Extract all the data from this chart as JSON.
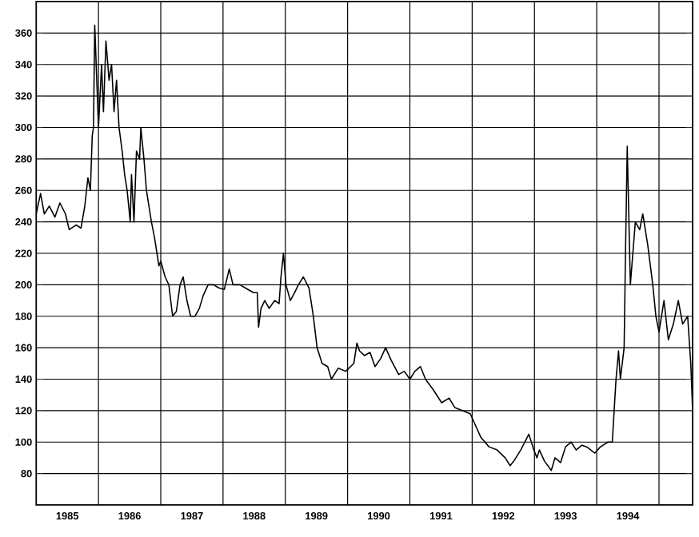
{
  "chart_data": {
    "type": "line",
    "x": [
      1985.0,
      1985.07,
      1985.13,
      1985.21,
      1985.3,
      1985.38,
      1985.47,
      1985.53,
      1985.64,
      1985.72,
      1985.78,
      1985.83,
      1985.87,
      1985.9,
      1985.92,
      1985.94,
      1986.0,
      1986.05,
      1986.08,
      1986.12,
      1986.17,
      1986.21,
      1986.25,
      1986.29,
      1986.33,
      1986.38,
      1986.42,
      1986.46,
      1986.51,
      1986.53,
      1986.57,
      1986.61,
      1986.66,
      1986.68,
      1986.73,
      1986.77,
      1986.81,
      1986.85,
      1986.9,
      1986.97,
      1987.0,
      1987.07,
      1987.13,
      1987.19,
      1987.25,
      1987.31,
      1987.36,
      1987.42,
      1987.48,
      1987.55,
      1987.62,
      1987.68,
      1987.76,
      1987.85,
      1987.93,
      1988.02,
      1988.1,
      1988.16,
      1988.27,
      1988.4,
      1988.49,
      1988.55,
      1988.57,
      1988.61,
      1988.67,
      1988.74,
      1988.83,
      1988.9,
      1988.93,
      1988.97,
      1989.01,
      1989.08,
      1989.15,
      1989.21,
      1989.29,
      1989.38,
      1989.45,
      1989.51,
      1989.59,
      1989.68,
      1989.74,
      1989.85,
      1989.97,
      1990.1,
      1990.15,
      1990.19,
      1990.27,
      1990.36,
      1990.44,
      1990.53,
      1990.61,
      1990.7,
      1990.82,
      1990.91,
      1991.0,
      1991.08,
      1991.17,
      1991.25,
      1991.38,
      1991.51,
      1991.63,
      1991.72,
      1991.84,
      1991.97,
      1992.06,
      1992.14,
      1992.27,
      1992.4,
      1992.53,
      1992.61,
      1992.67,
      1992.78,
      1992.91,
      1992.95,
      1992.99,
      1993.04,
      1993.08,
      1993.16,
      1993.27,
      1993.33,
      1993.42,
      1993.5,
      1993.59,
      1993.67,
      1993.76,
      1993.84,
      1993.97,
      1994.06,
      1994.18,
      1994.25,
      1994.31,
      1994.35,
      1994.38,
      1994.44,
      1994.46,
      1994.49,
      1994.54,
      1994.62,
      1994.69,
      1994.74,
      1994.82,
      1994.9,
      1994.95,
      1995.0,
      1995.08,
      1995.15,
      1995.23,
      1995.31,
      1995.38,
      1995.46,
      1995.51,
      1995.54
    ],
    "values": [
      245,
      258,
      245,
      250,
      243,
      252,
      245,
      235,
      238,
      236,
      250,
      268,
      260,
      295,
      300,
      365,
      300,
      340,
      310,
      355,
      330,
      340,
      310,
      330,
      300,
      285,
      270,
      260,
      240,
      270,
      240,
      285,
      280,
      300,
      280,
      260,
      250,
      240,
      230,
      212,
      215,
      205,
      200,
      180,
      183,
      200,
      205,
      190,
      180,
      180,
      185,
      193,
      200,
      200,
      198,
      197,
      210,
      200,
      200,
      197,
      195,
      195,
      173,
      185,
      190,
      185,
      190,
      188,
      205,
      220,
      200,
      190,
      195,
      200,
      205,
      198,
      180,
      160,
      150,
      148,
      140,
      147,
      145,
      150,
      163,
      158,
      155,
      157,
      148,
      153,
      160,
      152,
      143,
      145,
      140,
      145,
      148,
      140,
      133,
      125,
      128,
      122,
      120,
      118,
      110,
      103,
      97,
      95,
      90,
      85,
      88,
      95,
      105,
      100,
      95,
      90,
      95,
      88,
      82,
      90,
      87,
      97,
      100,
      95,
      98,
      97,
      93,
      97,
      100,
      100,
      140,
      158,
      140,
      160,
      215,
      288,
      200,
      240,
      235,
      245,
      225,
      200,
      180,
      170,
      190,
      165,
      175,
      190,
      175,
      180,
      150,
      120
    ],
    "color": "#000000",
    "xlim": [
      1985,
      1995.54
    ],
    "ylim": [
      60,
      380
    ],
    "xticks": [
      {
        "value": 1985.5,
        "label": "1985"
      },
      {
        "value": 1986.5,
        "label": "1986"
      },
      {
        "value": 1987.5,
        "label": "1987"
      },
      {
        "value": 1988.5,
        "label": "1988"
      },
      {
        "value": 1989.5,
        "label": "1989"
      },
      {
        "value": 1990.5,
        "label": "1990"
      },
      {
        "value": 1991.5,
        "label": "1991"
      },
      {
        "value": 1992.5,
        "label": "1992"
      },
      {
        "value": 1993.5,
        "label": "1993"
      },
      {
        "value": 1994.5,
        "label": "1994"
      },
      {
        "value": 1986,
        "label": null
      },
      {
        "value": 1987,
        "label": null
      },
      {
        "value": 1988,
        "label": null
      },
      {
        "value": 1989,
        "label": null
      },
      {
        "value": 1990,
        "label": null
      },
      {
        "value": 1991,
        "label": null
      },
      {
        "value": 1992,
        "label": null
      },
      {
        "value": 1993,
        "label": null
      },
      {
        "value": 1994,
        "label": null
      },
      {
        "value": 1995,
        "label": null
      }
    ],
    "yticks": [
      80,
      100,
      120,
      140,
      160,
      180,
      200,
      220,
      240,
      260,
      280,
      300,
      320,
      340,
      360
    ],
    "grid": true,
    "marker": "none",
    "line_style": "solid"
  }
}
